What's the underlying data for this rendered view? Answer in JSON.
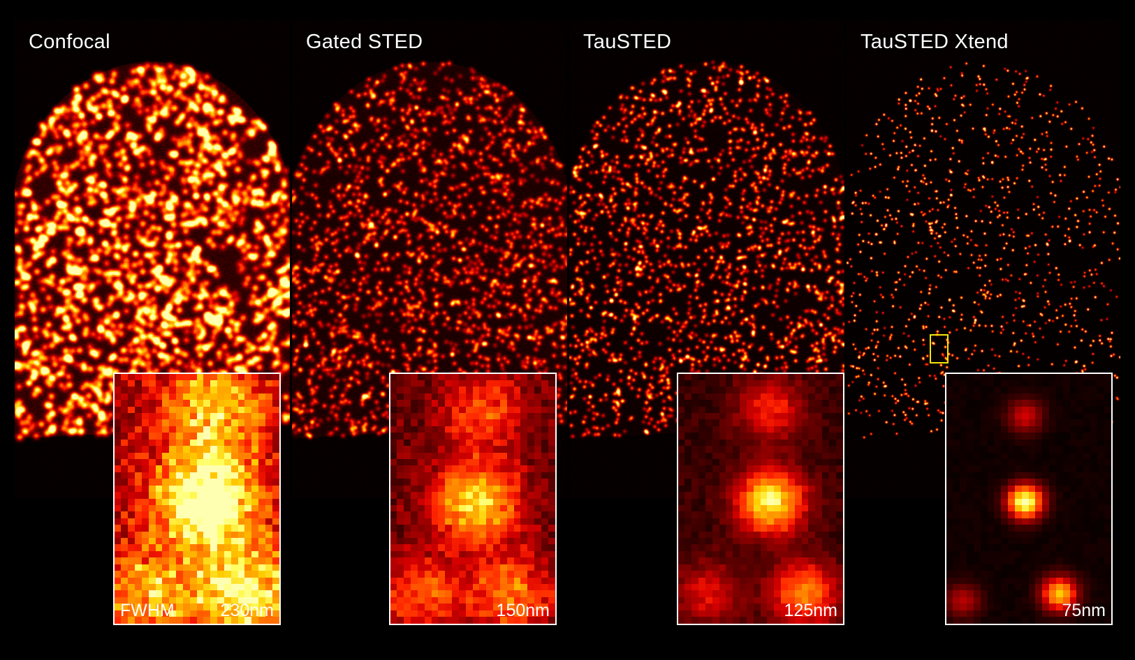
{
  "panels": [
    {
      "title": "Confocal",
      "inset_value": "230nm",
      "fwhm_label": "FWHM"
    },
    {
      "title": "Gated STED",
      "inset_value": "150nm"
    },
    {
      "title": "TauSTED",
      "inset_value": "125nm"
    },
    {
      "title": "TauSTED Xtend",
      "inset_value": "75nm"
    }
  ],
  "colors": {
    "background": "#000000",
    "colormap": "hot",
    "inset_border": "#ffffff",
    "roi_box": "#f5e600"
  }
}
